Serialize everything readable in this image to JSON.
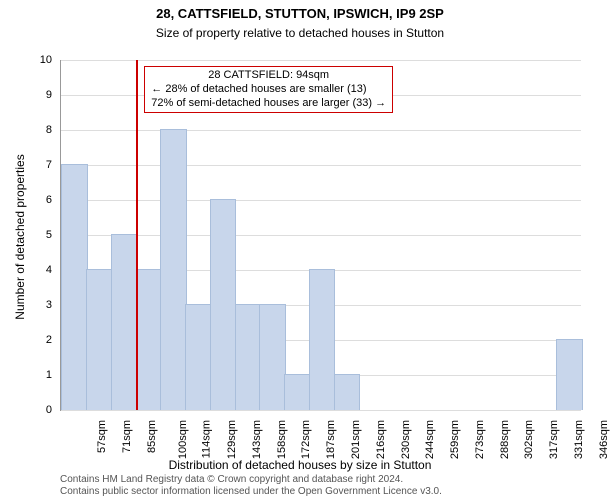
{
  "title": "28, CATTSFIELD, STUTTON, IPSWICH, IP9 2SP",
  "subtitle": "Size of property relative to detached houses in Stutton",
  "title_fontsize": 13,
  "subtitle_fontsize": 12,
  "y_axis_label": "Number of detached properties",
  "x_axis_label": "Distribution of detached houses by size in Stutton",
  "axis_label_fontsize": 12,
  "tick_fontsize": 11,
  "ylim": [
    0,
    10
  ],
  "ytick_step": 1,
  "x_categories": [
    "57sqm",
    "71sqm",
    "85sqm",
    "100sqm",
    "114sqm",
    "129sqm",
    "143sqm",
    "158sqm",
    "172sqm",
    "187sqm",
    "201sqm",
    "216sqm",
    "230sqm",
    "244sqm",
    "259sqm",
    "273sqm",
    "288sqm",
    "302sqm",
    "317sqm",
    "331sqm",
    "346sqm"
  ],
  "bar_values": [
    7,
    4,
    5,
    4,
    8,
    3,
    6,
    3,
    3,
    1,
    4,
    1,
    0,
    0,
    0,
    0,
    0,
    0,
    0,
    0,
    2
  ],
  "bar_color": "#c8d6eb",
  "bar_border_color": "#a9bedb",
  "grid_color": "#dddddd",
  "background_color": "#ffffff",
  "ref_line_index": 3,
  "ref_line_color": "#cc0000",
  "ref_line_width": 2,
  "callout": {
    "lines": [
      "28 CATTSFIELD: 94sqm",
      "← 28% of detached houses are smaller (13)",
      "72% of semi-detached houses are larger (33) →"
    ],
    "border_color": "#cc0000",
    "fontsize": 11
  },
  "footer": {
    "line1": "Contains HM Land Registry data © Crown copyright and database right 2024.",
    "line2": "Contains public sector information licensed under the Open Government Licence v3.0.",
    "fontsize": 10,
    "color": "#555555"
  }
}
